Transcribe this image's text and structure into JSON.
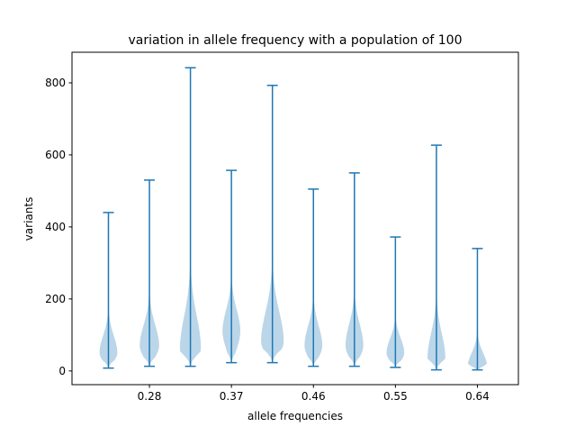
{
  "chart_data": {
    "type": "violin",
    "title": "variation in allele frequency with a population of 100",
    "xlabel": "allele frequencies",
    "ylabel": "variants",
    "ylim": [
      -38,
      885
    ],
    "xlim": [
      0.195,
      0.685
    ],
    "y_ticks": [
      0,
      200,
      400,
      600,
      800
    ],
    "x_ticks": [
      0.28,
      0.37,
      0.46,
      0.55,
      0.64
    ],
    "x_tick_labels": [
      "0.28",
      "0.37",
      "0.46",
      "0.55",
      "0.64"
    ],
    "colors": {
      "body": "#1f77b4",
      "body_alpha": 0.3,
      "lines": "#1f77b4"
    },
    "grid": false,
    "series": [
      {
        "x": 0.235,
        "min": 8,
        "max": 440,
        "mode": 50,
        "width": 0.55
      },
      {
        "x": 0.28,
        "min": 13,
        "max": 530,
        "mode": 70,
        "width": 0.6
      },
      {
        "x": 0.325,
        "min": 13,
        "max": 842,
        "mode": 60,
        "width": 0.65
      },
      {
        "x": 0.37,
        "min": 23,
        "max": 557,
        "mode": 110,
        "width": 0.55
      },
      {
        "x": 0.415,
        "min": 23,
        "max": 793,
        "mode": 80,
        "width": 0.7
      },
      {
        "x": 0.46,
        "min": 13,
        "max": 505,
        "mode": 70,
        "width": 0.55
      },
      {
        "x": 0.505,
        "min": 13,
        "max": 550,
        "mode": 70,
        "width": 0.55
      },
      {
        "x": 0.55,
        "min": 10,
        "max": 372,
        "mode": 50,
        "width": 0.55
      },
      {
        "x": 0.595,
        "min": 3,
        "max": 627,
        "mode": 35,
        "width": 0.55
      },
      {
        "x": 0.64,
        "min": 3,
        "max": 340,
        "mode": 12,
        "width": 0.6
      }
    ]
  }
}
